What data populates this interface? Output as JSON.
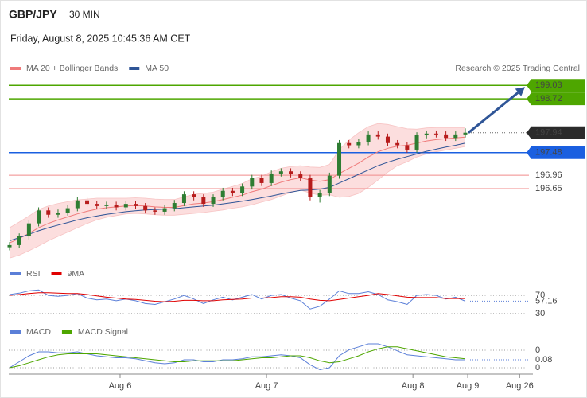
{
  "header": {
    "symbol": "GBP/JPY",
    "timeframe": "30 MIN",
    "datetime": "Friday, August 8, 2025 10:45:36 AM CET"
  },
  "chart_data": [
    {
      "type": "candlestick",
      "source": "Research © 2025 Trading Central",
      "xlim": [
        0,
        47
      ],
      "ylim": [
        195.0,
        199.2
      ],
      "up_color": "#2e7d32",
      "down_color": "#b71c1c",
      "band_color": "#fcdede",
      "open": [
        195.3,
        195.35,
        195.55,
        195.85,
        196.15,
        196.05,
        196.1,
        196.2,
        196.38,
        196.3,
        196.25,
        196.28,
        196.22,
        196.3,
        196.25,
        196.15,
        196.12,
        196.2,
        196.32,
        196.52,
        196.45,
        196.3,
        196.45,
        196.6,
        196.55,
        196.7,
        196.9,
        196.78,
        197.0,
        197.05,
        196.98,
        196.9,
        196.45,
        196.55,
        196.95,
        197.7,
        197.65,
        197.72,
        197.9,
        197.85,
        197.7,
        197.65,
        197.55,
        197.88,
        197.92,
        197.9,
        197.82,
        197.9
      ],
      "high": [
        195.42,
        195.62,
        195.92,
        196.22,
        196.22,
        196.17,
        196.27,
        196.45,
        196.45,
        196.37,
        196.35,
        196.35,
        196.37,
        196.37,
        196.32,
        196.22,
        196.27,
        196.39,
        196.59,
        196.59,
        196.52,
        196.52,
        196.67,
        196.67,
        196.77,
        196.97,
        196.97,
        197.07,
        197.12,
        197.12,
        197.05,
        196.97,
        196.62,
        197.02,
        197.77,
        197.77,
        197.79,
        197.97,
        197.97,
        197.92,
        197.77,
        197.72,
        197.95,
        197.99,
        197.99,
        197.97,
        197.97,
        198.04
      ],
      "low": [
        195.23,
        195.28,
        195.48,
        195.78,
        195.98,
        195.98,
        196.03,
        196.13,
        196.23,
        196.18,
        196.18,
        196.15,
        196.15,
        196.18,
        196.08,
        196.05,
        196.05,
        196.13,
        196.25,
        196.38,
        196.23,
        196.23,
        196.38,
        196.48,
        196.48,
        196.63,
        196.71,
        196.71,
        196.93,
        196.91,
        196.83,
        196.38,
        196.33,
        196.48,
        196.88,
        197.58,
        197.58,
        197.65,
        197.78,
        197.63,
        197.58,
        197.48,
        197.48,
        197.81,
        197.83,
        197.75,
        197.75,
        197.83
      ],
      "close": [
        195.35,
        195.55,
        195.85,
        196.15,
        196.05,
        196.1,
        196.2,
        196.38,
        196.3,
        196.25,
        196.28,
        196.22,
        196.3,
        196.25,
        196.15,
        196.12,
        196.2,
        196.32,
        196.52,
        196.45,
        196.3,
        196.45,
        196.6,
        196.55,
        196.7,
        196.9,
        196.78,
        197.0,
        197.05,
        196.98,
        196.9,
        196.45,
        196.55,
        196.95,
        197.7,
        197.65,
        197.72,
        197.9,
        197.85,
        197.7,
        197.65,
        197.55,
        197.88,
        197.92,
        197.9,
        197.82,
        197.9,
        197.94
      ],
      "bollinger_upper": [
        195.75,
        195.88,
        196.02,
        196.17,
        196.25,
        196.31,
        196.35,
        196.39,
        196.41,
        196.43,
        196.43,
        196.43,
        196.43,
        196.44,
        196.43,
        196.41,
        196.4,
        196.4,
        196.46,
        196.52,
        196.54,
        196.57,
        196.64,
        196.7,
        196.77,
        196.88,
        196.94,
        197.04,
        197.12,
        197.16,
        197.18,
        197.15,
        197.14,
        197.21,
        197.55,
        197.77,
        197.94,
        198.08,
        198.15,
        198.13,
        198.08,
        198.03,
        198.02,
        198.05,
        198.06,
        198.06,
        198.06,
        198.06
      ],
      "bollinger_lower": [
        195.05,
        195.12,
        195.22,
        195.33,
        195.45,
        195.55,
        195.65,
        195.75,
        195.85,
        195.93,
        195.99,
        196.03,
        196.07,
        196.08,
        196.07,
        196.05,
        196.04,
        196.04,
        196.06,
        196.08,
        196.1,
        196.13,
        196.16,
        196.2,
        196.23,
        196.28,
        196.34,
        196.4,
        196.48,
        196.56,
        196.62,
        196.55,
        196.5,
        196.51,
        196.45,
        196.47,
        196.54,
        196.68,
        196.85,
        197.03,
        197.18,
        197.27,
        197.38,
        197.45,
        197.5,
        197.54,
        197.58,
        197.62
      ],
      "series": [
        {
          "name": "MA 20 + Bollinger Bands",
          "color": "#ef7a7a",
          "values": [
            195.4,
            195.5,
            195.62,
            195.75,
            195.85,
            195.93,
            196.0,
            196.07,
            196.13,
            196.18,
            196.21,
            196.23,
            196.25,
            196.26,
            196.25,
            196.23,
            196.22,
            196.22,
            196.26,
            196.3,
            196.32,
            196.35,
            196.4,
            196.45,
            196.5,
            196.58,
            196.64,
            196.72,
            196.8,
            196.86,
            196.9,
            196.85,
            196.82,
            196.86,
            197.0,
            197.12,
            197.24,
            197.38,
            197.5,
            197.58,
            197.63,
            197.65,
            197.7,
            197.75,
            197.78,
            197.8,
            197.82,
            197.84
          ]
        },
        {
          "name": "MA 50",
          "color": "#2f5597",
          "values": [
            195.45,
            195.52,
            195.6,
            195.68,
            195.75,
            195.81,
            195.87,
            195.93,
            195.98,
            196.02,
            196.06,
            196.09,
            196.12,
            196.14,
            196.16,
            196.17,
            196.18,
            196.19,
            196.21,
            196.23,
            196.25,
            196.27,
            196.3,
            196.33,
            196.36,
            196.4,
            196.44,
            196.48,
            196.53,
            196.57,
            196.61,
            196.62,
            196.64,
            196.68,
            196.78,
            196.88,
            196.98,
            197.08,
            197.18,
            197.26,
            197.33,
            197.39,
            197.45,
            197.51,
            197.56,
            197.61,
            197.65,
            197.7
          ]
        }
      ],
      "levels": [
        {
          "value": 199.03,
          "color": "#4ea600",
          "boxed": true
        },
        {
          "value": 198.72,
          "color": "#4ea600",
          "boxed": true
        },
        {
          "value": 197.48,
          "color": "#1a5fe0",
          "boxed": true
        },
        {
          "value": 196.96,
          "color": "#f08a8a",
          "text_color": "#d62020",
          "boxed": false
        },
        {
          "value": 196.65,
          "color": "#f08a8a",
          "text_color": "#d62020",
          "boxed": false
        }
      ],
      "last_price_color": "#2b2b2b",
      "forecast_color": "#2f5597"
    },
    {
      "type": "line",
      "xlim": [
        0,
        47
      ],
      "ylim": [
        0,
        100
      ],
      "yticks": [
        70,
        30
      ],
      "series": [
        {
          "name": "RSI",
          "color": "#5b7fd8",
          "values": [
            72,
            75,
            80,
            82,
            70,
            68,
            70,
            74,
            64,
            60,
            62,
            58,
            62,
            58,
            52,
            50,
            56,
            62,
            70,
            62,
            52,
            60,
            66,
            60,
            66,
            72,
            62,
            70,
            72,
            64,
            58,
            40,
            46,
            62,
            80,
            74,
            74,
            78,
            72,
            60,
            56,
            50,
            70,
            72,
            70,
            62,
            66,
            57.16
          ]
        },
        {
          "name": "9MA",
          "color": "#e00000",
          "values": [
            70,
            72,
            74,
            76,
            76,
            75,
            74,
            74,
            72,
            69,
            66,
            64,
            62,
            61,
            59,
            57,
            56,
            57,
            59,
            59,
            58,
            58,
            60,
            61,
            62,
            64,
            64,
            65,
            67,
            67,
            66,
            62,
            59,
            58,
            61,
            64,
            67,
            70,
            74,
            72,
            69,
            66,
            65,
            65,
            65,
            63,
            63,
            63
          ]
        }
      ]
    },
    {
      "type": "line",
      "xlim": [
        0,
        47
      ],
      "ylim": [
        -0.064,
        0.272
      ],
      "yticks": [
        {
          "value": 0.176,
          "label": "0"
        },
        0
      ],
      "xticks": [
        {
          "value": 11.4,
          "label": "Aug 6"
        },
        {
          "value": 26.5,
          "label": "Aug 7"
        },
        {
          "value": 41.6,
          "label": "Aug 8"
        },
        {
          "value": 47.25,
          "label": "Aug 9"
        },
        {
          "value": 52.6,
          "label": "Aug 26"
        }
      ],
      "series": [
        {
          "name": "MACD",
          "color": "#5b7fd8",
          "values": [
            0.0,
            0.06,
            0.12,
            0.16,
            0.16,
            0.15,
            0.15,
            0.16,
            0.14,
            0.12,
            0.11,
            0.1,
            0.1,
            0.09,
            0.07,
            0.05,
            0.04,
            0.05,
            0.08,
            0.08,
            0.06,
            0.06,
            0.08,
            0.08,
            0.09,
            0.11,
            0.11,
            0.12,
            0.13,
            0.12,
            0.1,
            0.03,
            -0.02,
            0.0,
            0.12,
            0.18,
            0.21,
            0.24,
            0.24,
            0.21,
            0.17,
            0.13,
            0.12,
            0.11,
            0.1,
            0.09,
            0.08,
            0.08
          ]
        },
        {
          "name": "MACD Signal",
          "color": "#4ea600",
          "values": [
            0.0,
            0.02,
            0.05,
            0.08,
            0.11,
            0.13,
            0.14,
            0.14,
            0.14,
            0.14,
            0.13,
            0.12,
            0.11,
            0.1,
            0.09,
            0.08,
            0.07,
            0.06,
            0.06,
            0.07,
            0.07,
            0.07,
            0.07,
            0.07,
            0.08,
            0.09,
            0.1,
            0.1,
            0.11,
            0.12,
            0.12,
            0.1,
            0.07,
            0.05,
            0.06,
            0.09,
            0.12,
            0.16,
            0.19,
            0.21,
            0.21,
            0.19,
            0.17,
            0.15,
            0.13,
            0.11,
            0.1,
            0.09
          ]
        }
      ]
    }
  ]
}
